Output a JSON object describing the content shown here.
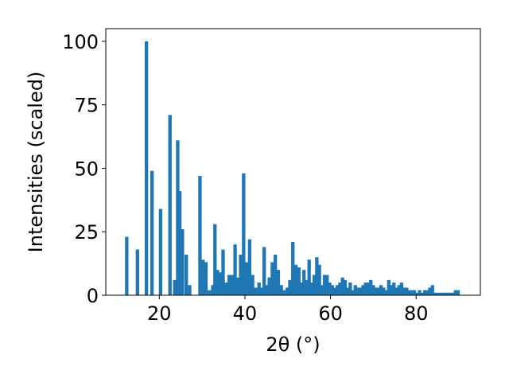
{
  "chart_data": {
    "type": "bar",
    "xlabel": "2θ (°)",
    "ylabel": "Intensities (scaled)",
    "xlim": [
      7.5,
      95
    ],
    "ylim": [
      0,
      105
    ],
    "xticks": [
      20,
      40,
      60,
      80
    ],
    "yticks": [
      0,
      25,
      50,
      75,
      100
    ],
    "grid": false,
    "bar_color": "#1f77b4",
    "bar_width": 0.8,
    "x": [
      12.4,
      14.9,
      17.0,
      18.3,
      20.3,
      22.5,
      23.6,
      24.3,
      24.8,
      25.4,
      26.3,
      27.1,
      29.5,
      30.2,
      30.9,
      31.7,
      32.5,
      33.0,
      33.6,
      34.3,
      34.9,
      35.6,
      36.3,
      37.0,
      37.7,
      38.4,
      39.0,
      39.7,
      40.4,
      41.1,
      41.8,
      42.5,
      43.3,
      43.9,
      44.5,
      45.1,
      45.7,
      46.4,
      47.1,
      47.8,
      48.5,
      49.2,
      49.9,
      50.5,
      51.2,
      51.9,
      52.6,
      53.3,
      53.8,
      54.4,
      55.0,
      55.6,
      56.2,
      56.8,
      57.4,
      58.0,
      58.6,
      59.2,
      59.8,
      60.4,
      61.0,
      61.6,
      62.2,
      62.8,
      63.4,
      64.0,
      64.6,
      65.2,
      65.8,
      66.4,
      67.0,
      67.6,
      68.2,
      68.8,
      69.4,
      70.0,
      70.6,
      71.2,
      71.8,
      72.4,
      73.0,
      73.6,
      74.2,
      74.8,
      75.4,
      76.0,
      76.6,
      77.2,
      77.8,
      78.4,
      79.0,
      79.6,
      80.2,
      80.8,
      81.4,
      82.0,
      82.6,
      83.2,
      83.8,
      84.4,
      85.0,
      85.6,
      86.2,
      86.8,
      87.4,
      88.0,
      88.6,
      89.2,
      89.8
    ],
    "values": [
      23,
      18,
      100,
      49,
      34,
      71,
      6,
      61,
      41,
      26,
      16,
      4,
      47,
      14,
      13,
      2,
      4,
      28,
      10,
      9,
      18,
      5,
      8,
      8,
      20,
      7,
      16,
      48,
      13,
      22,
      8,
      3,
      5,
      3,
      19,
      4,
      7,
      13,
      16,
      10,
      4,
      2,
      3,
      6,
      21,
      12,
      11,
      5,
      10,
      6,
      14,
      5,
      8,
      15,
      12,
      4,
      8,
      8,
      5,
      4,
      3,
      4,
      5,
      7,
      6,
      3,
      5,
      2,
      4,
      3,
      3,
      4,
      5,
      5,
      6,
      4,
      3,
      3,
      4,
      3,
      2,
      6,
      4,
      5,
      3,
      4,
      5,
      3,
      3,
      2,
      2,
      2,
      1,
      2,
      1,
      2,
      2,
      3,
      4,
      1,
      1,
      1,
      1,
      1,
      1,
      1,
      1,
      2,
      2
    ]
  }
}
